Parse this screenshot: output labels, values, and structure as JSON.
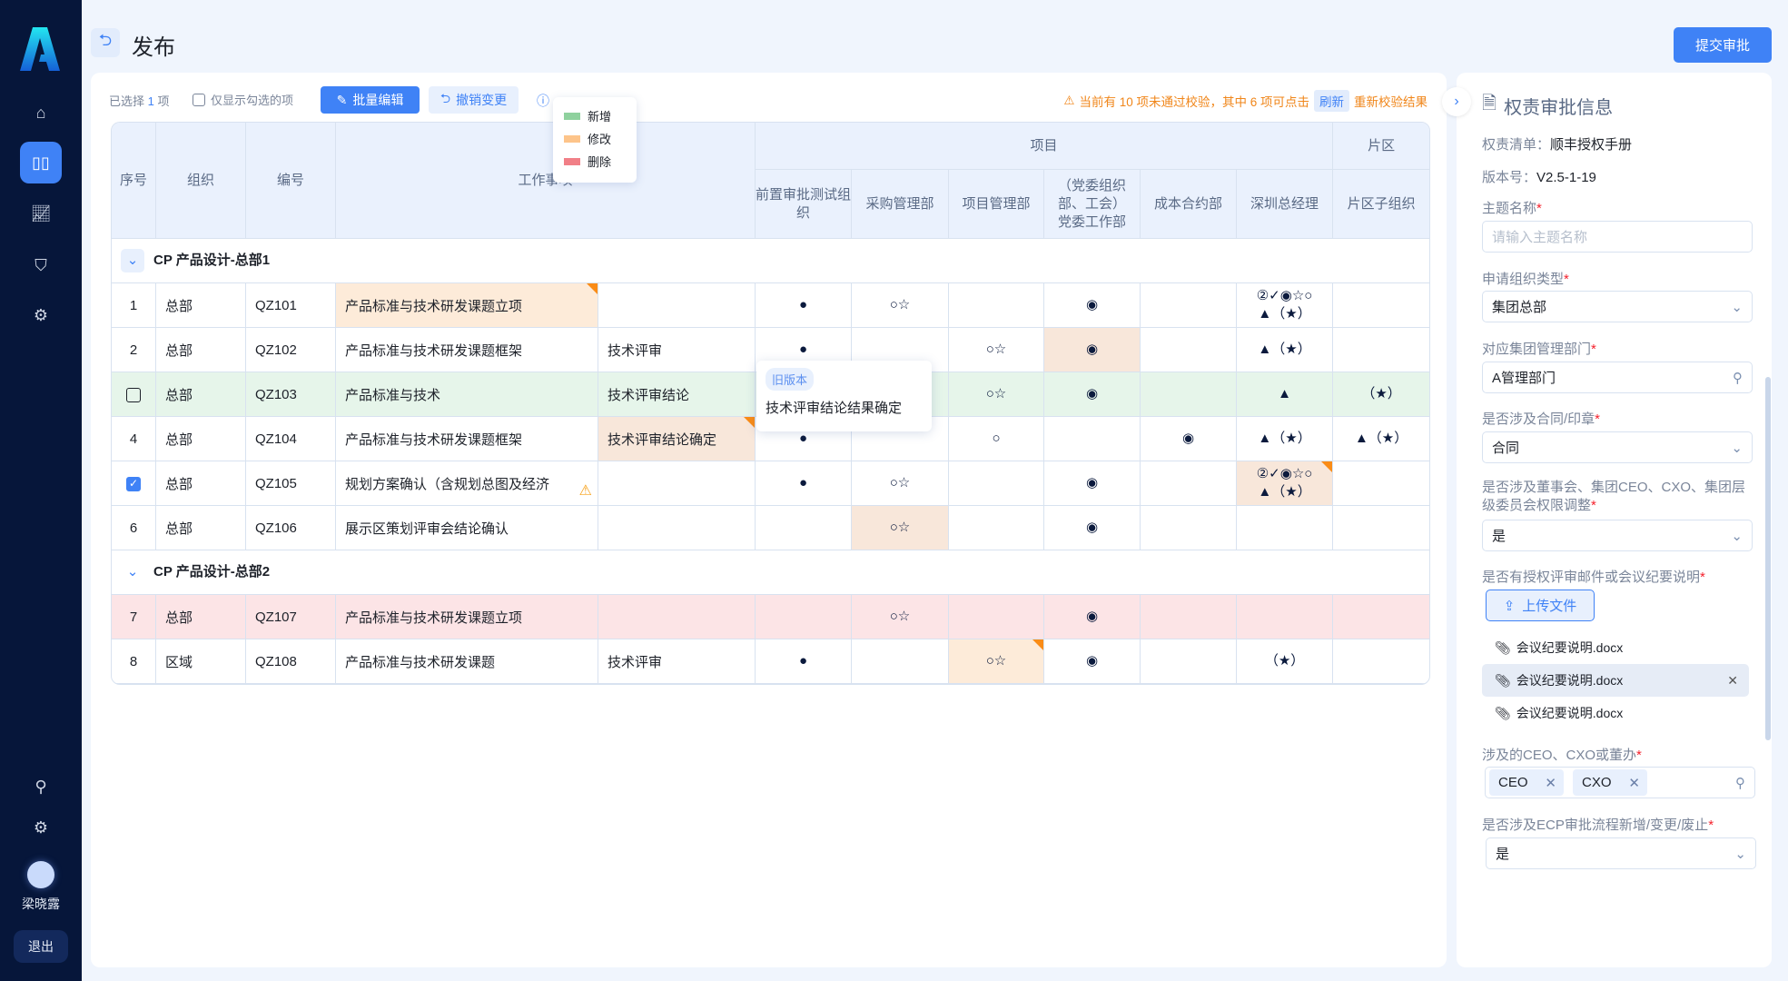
{
  "sidebar": {
    "user_name": "梁晓露",
    "logout": "退出",
    "items": [
      "home-icon",
      "book-icon",
      "chart-icon",
      "shield-icon",
      "gear-icon"
    ],
    "active": 1
  },
  "header": {
    "title": "发布",
    "submit": "提交审批"
  },
  "toolbar": {
    "selected_prefix": "已选择",
    "selected_count": "1",
    "selected_suffix": "项",
    "only_checked": "仅显示勾选的项",
    "batch_edit": "批量编辑",
    "undo": "撤销变更",
    "warning": "当前有 10 项未通过校验，其中 6 项可点击",
    "refresh": "刷新",
    "warning_tail": "重新校验结果"
  },
  "legend": [
    {
      "label": "新增",
      "color": "#8fd19e"
    },
    {
      "label": "修改",
      "color": "#fdc48a"
    },
    {
      "label": "删除",
      "color": "#f17f87"
    }
  ],
  "table": {
    "headers": {
      "seq": "序号",
      "org": "组织",
      "code": "编号",
      "work": "工作事项",
      "project": "项目",
      "area": "片区",
      "cols": [
        "前置审批测试组织",
        "采购管理部",
        "项目管理部",
        "（党委组织部、工会）党委工作部",
        "成本合约部",
        "深圳总经理",
        "片区子组织"
      ]
    },
    "groups": [
      {
        "title": "CP 产品设计-总部1",
        "rows": [
          {
            "seq": "1",
            "org": "总部",
            "code": "QZ101",
            "item": "产品标准与技术研发课题立项",
            "sub": "",
            "cells": [
              "●",
              "○☆",
              "",
              "◉",
              "",
              "②✓◉☆○\n▲（★）",
              ""
            ],
            "mod": [
              3
            ],
            "flag": [
              3
            ]
          },
          {
            "seq": "2",
            "org": "总部",
            "code": "QZ102",
            "item": "产品标准与技术研发课题框架",
            "sub": "技术评审",
            "cells": [
              "●",
              "",
              "○☆",
              "◉",
              "",
              "▲（★）",
              ""
            ],
            "mod": [
              8
            ],
            "flag": []
          },
          {
            "seq": "",
            "checkbox": "unchecked",
            "status": "added",
            "org": "总部",
            "code": "QZ103",
            "item": "产品标准与技术",
            "sub": "技术评审结论",
            "cells": [
              "",
              "",
              "○☆",
              "◉",
              "",
              "▲",
              "（★）"
            ],
            "mod": [],
            "flag": []
          },
          {
            "seq": "4",
            "org": "总部",
            "code": "QZ104",
            "item": "产品标准与技术研发课题框架",
            "sub": "技术评审结论确定",
            "cells": [
              "●",
              "",
              "○",
              "",
              "◉",
              "▲（★）",
              "▲（★）"
            ],
            "mod": [
              4
            ],
            "flag": [
              4
            ]
          },
          {
            "seq": "",
            "checkbox": "checked",
            "org": "总部",
            "code": "QZ105",
            "item": "规划方案确认（含规划总图及经济",
            "warning": true,
            "sub": "",
            "cells": [
              "●",
              "○☆",
              "",
              "◉",
              "",
              "②✓◉☆○\n▲（★）",
              ""
            ],
            "mod": [
              10
            ],
            "flag": [
              10
            ]
          },
          {
            "seq": "6",
            "org": "总部",
            "code": "QZ106",
            "item": "展示区策划评审会结论确认",
            "sub": "",
            "cells": [
              "",
              "○☆",
              "",
              "◉",
              "",
              "",
              ""
            ],
            "mod": [
              6
            ],
            "flag": []
          }
        ]
      },
      {
        "title": "CP 产品设计-总部2",
        "rows": [
          {
            "seq": "7",
            "status": "deleted",
            "org": "总部",
            "code": "QZ107",
            "item": "产品标准与技术研发课题立项",
            "sub": "",
            "cells": [
              "",
              "○☆",
              "",
              "◉",
              "",
              "",
              ""
            ],
            "mod": [],
            "flag": []
          },
          {
            "seq": "8",
            "org": "区域",
            "code": "QZ108",
            "item": "产品标准与技术研发课题",
            "sub": "技术评审",
            "cells": [
              "●",
              "",
              "○☆",
              "◉",
              "",
              "（★）",
              ""
            ],
            "mod": [
              7
            ],
            "flag": [
              7
            ]
          }
        ]
      }
    ]
  },
  "old_version_tip": {
    "tag": "旧版本",
    "text": "技术评审结论结果确定"
  },
  "panel": {
    "title": "权责审批信息",
    "list_label": "权责清单：",
    "list_value": "顺丰授权手册",
    "version_label": "版本号：",
    "version_value": "V2.5-1-19",
    "topic_label": "主题名称",
    "topic_placeholder": "请输入主题名称",
    "org_type_label": "申请组织类型",
    "org_type_value": "集团总部",
    "dept_label": "对应集团管理部门",
    "dept_value": "A管理部门",
    "contract_label": "是否涉及合同/印章",
    "contract_value": "合同",
    "board_label": "是否涉及董事会、集团CEO、CXO、集团层级委员会权限调整",
    "board_value": "是",
    "mail_label": "是否有授权评审邮件或会议纪要说明",
    "upload": "上传文件",
    "files": [
      "会议纪要说明.docx",
      "会议纪要说明.docx",
      "会议纪要说明.docx"
    ],
    "ceo_label": "涉及的CEO、CXO或董办",
    "ceo_tags": [
      "CEO",
      "CXO"
    ],
    "ecp_label": "是否涉及ECP审批流程新增/变更/废止",
    "ecp_value": "是",
    "required_mark": "*"
  }
}
